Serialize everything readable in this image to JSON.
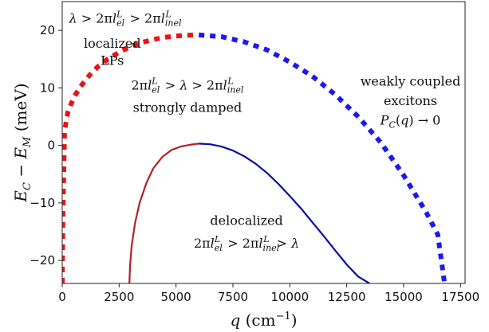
{
  "chart_data": {
    "type": "line",
    "title": "",
    "xlabel": "q (cm⁻¹)",
    "ylabel": "E_C − E_M (meV)",
    "xlim": [
      0,
      17700
    ],
    "ylim": [
      -24,
      25
    ],
    "grid": false,
    "x_ticks": [
      0,
      2500,
      5000,
      7500,
      10000,
      12500,
      15000,
      17500
    ],
    "y_ticks": [
      20,
      10,
      0,
      -10,
      -20
    ],
    "x_tick_labels": [
      "0",
      "2500",
      "5000",
      "7500",
      "10000",
      "12500",
      "15000",
      "17500"
    ],
    "y_tick_labels": [
      "20",
      "10",
      "0",
      "−10",
      "−20"
    ],
    "colors": {
      "red_dashed": "#ee1111",
      "blue_dashed": "#1a1aee",
      "red_solid": "#b22222",
      "blue_solid": "#0b0ba6"
    },
    "series": [
      {
        "style": "dashed",
        "color": "#ee1111",
        "x": [
          0,
          30,
          100,
          250,
          500,
          800,
          1200,
          1600,
          2000,
          2500,
          3000,
          3500,
          4000,
          4500,
          5000,
          5500,
          5900
        ],
        "y": [
          -24,
          -12,
          2.5,
          5.8,
          8.3,
          10.2,
          12.2,
          13.8,
          15.0,
          16.2,
          17.2,
          17.9,
          18.4,
          18.8,
          19.0,
          19.15,
          19.2
        ]
      },
      {
        "style": "dashed",
        "color": "#1a1aee",
        "x": [
          6000,
          7000,
          8000,
          9000,
          10000,
          11000,
          12000,
          13000,
          14000,
          15000,
          16000,
          16500,
          16800
        ],
        "y": [
          19.2,
          18.9,
          18.0,
          16.6,
          14.5,
          12.0,
          8.8,
          5.0,
          0.5,
          -5.2,
          -11.7,
          -15.5,
          -24
        ]
      },
      {
        "style": "solid",
        "color": "#b22222",
        "x": [
          2950,
          2980,
          3050,
          3200,
          3400,
          3700,
          4000,
          4400,
          4800,
          5200,
          5600,
          6000
        ],
        "y": [
          -24,
          -21,
          -17.5,
          -13.5,
          -10.0,
          -6.5,
          -4.0,
          -2.0,
          -0.8,
          -0.2,
          0.1,
          0.3
        ]
      },
      {
        "style": "solid",
        "color": "#0b0ba6",
        "x": [
          6000,
          6500,
          7000,
          7500,
          8000,
          8500,
          9000,
          9500,
          10000,
          10500,
          11000,
          11500,
          12000,
          12500,
          13000,
          13500
        ],
        "y": [
          0.3,
          0.2,
          -0.2,
          -0.9,
          -1.9,
          -3.2,
          -4.8,
          -6.7,
          -8.8,
          -11.0,
          -13.4,
          -15.8,
          -18.3,
          -20.7,
          -22.8,
          -24
        ]
      }
    ],
    "annotations": {
      "top_left": {
        "text": "λ > 2πl_el^L > 2πl_inel^L",
        "x": 300,
        "y": 21.3
      },
      "localized": {
        "line1": "localized",
        "line2": "LPs",
        "x": 2200,
        "y1": 17.0,
        "y2": 14.0
      },
      "middle": {
        "text": "2πl_el^L > λ > 2πl_inel^L",
        "x": 5500,
        "y": 9.7
      },
      "strongly": {
        "text": "strongly damped",
        "x": 5500,
        "y": 5.8
      },
      "weakly": {
        "line1": "weakly coupled",
        "line2": "excitons",
        "x": 15300,
        "y1": 10.4,
        "y2": 7.0
      },
      "pc": {
        "text": "P_C(q) → 0",
        "x": 15300,
        "y": 3.6
      },
      "delocalized": {
        "line1": "delocalized",
        "line2": "2πl_el^L > 2πl_inel^L > λ",
        "x": 8100,
        "y1": -13.8,
        "y2": -17.8
      }
    }
  }
}
